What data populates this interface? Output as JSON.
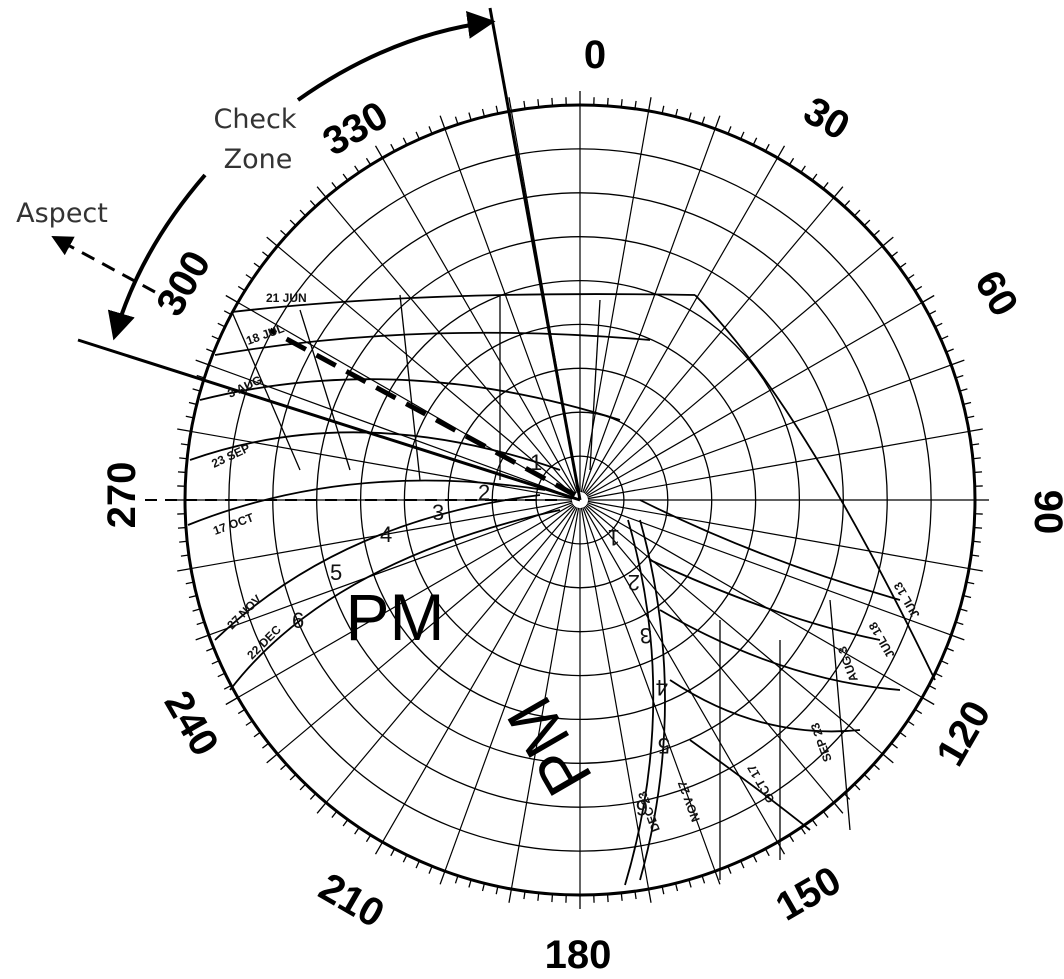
{
  "degree_labels": [
    "0",
    "30",
    "60",
    "90",
    "120",
    "150",
    "180",
    "210",
    "240",
    "270",
    "300",
    "330"
  ],
  "annotations": {
    "check_zone_line1": "Check",
    "check_zone_line2": "Zone",
    "aspect": "Aspect"
  },
  "pm_label": "PM",
  "pm_label_inverted": "PM",
  "date_labels_left": [
    "21 JUN",
    "18 JUL",
    "3 AUG",
    "23 SEP",
    "17 OCT",
    "27 NOV",
    "22 DEC"
  ],
  "date_labels_right": [
    "JUL 13",
    "JUL 18",
    "AUG 3",
    "SEP 23",
    "OCT 17",
    "NOV 27",
    "DEC 23"
  ],
  "hour_labels_left": [
    "1",
    "2",
    "3",
    "4",
    "5",
    "6"
  ],
  "hour_labels_right": [
    "1",
    "2",
    "3",
    "4",
    "5",
    "6"
  ]
}
